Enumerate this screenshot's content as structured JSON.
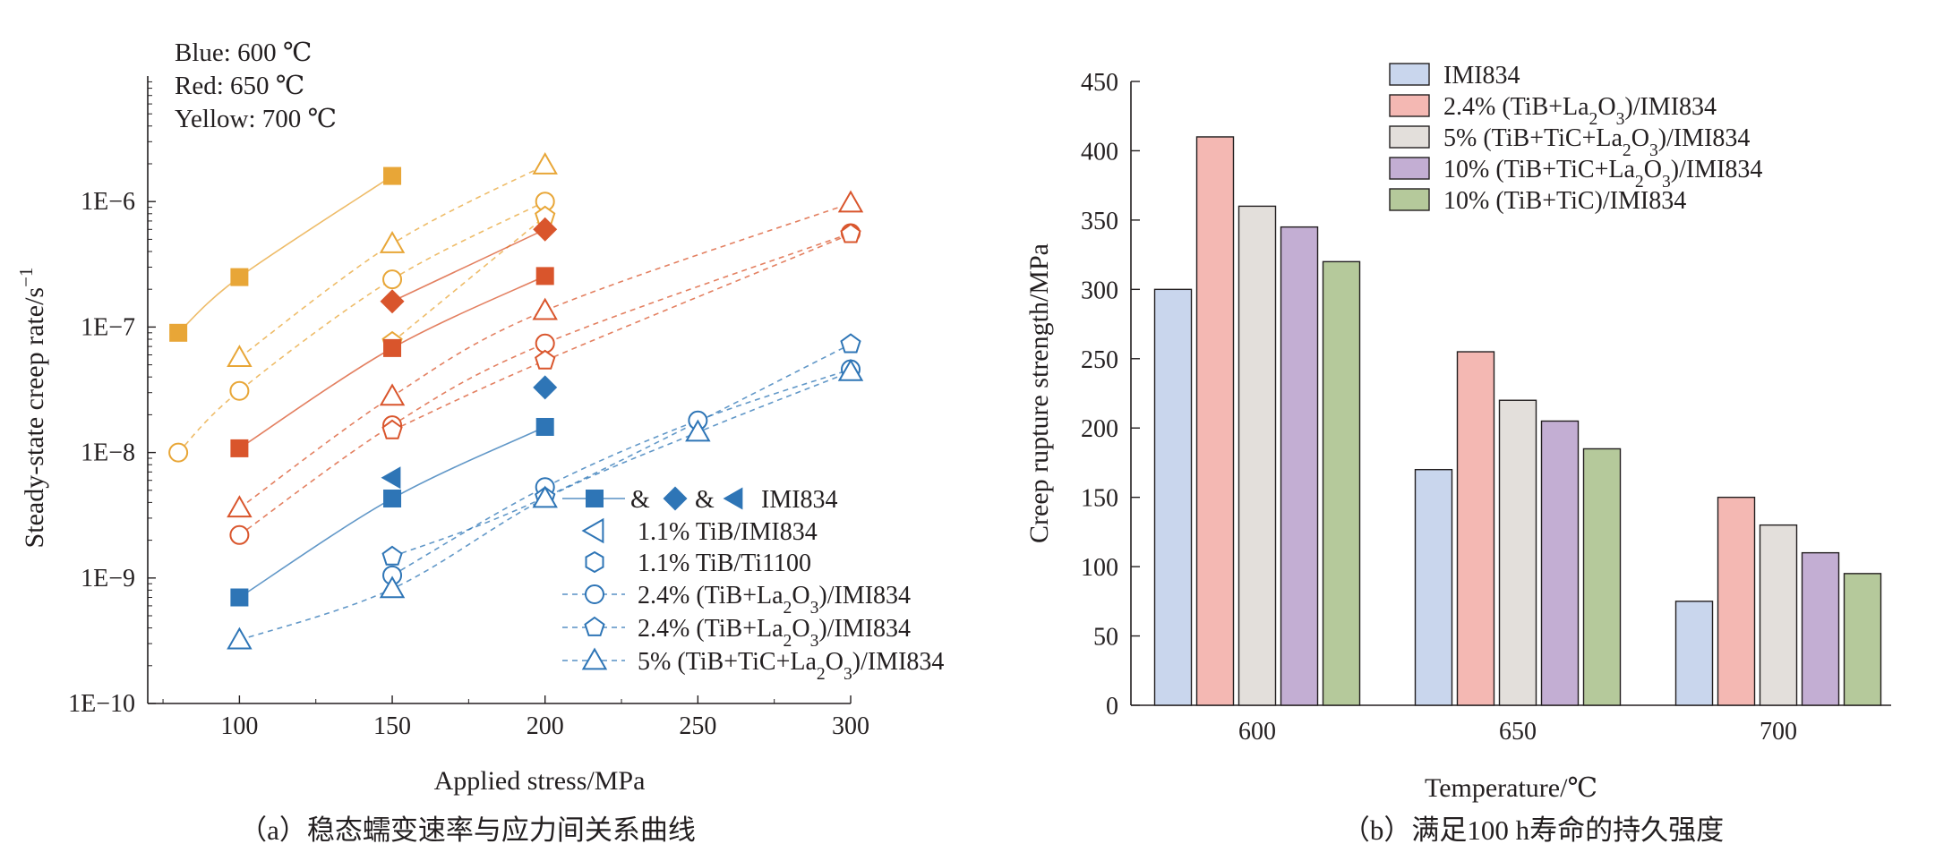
{
  "chart_data": [
    {
      "type": "scatter",
      "yscale": "log",
      "xlabel": "Applied stress/MPa",
      "ylabel": "Steady-state creep rate/s",
      "ylabel_sup": "−1",
      "caption": "（a）稳态蠕变速率与应力间关系曲线",
      "xlim": [
        70,
        300
      ],
      "ylim": [
        1e-10,
        1e-05
      ],
      "xticks": [
        100,
        150,
        200,
        250,
        300
      ],
      "xtick_labels": [
        "100",
        "150",
        "200",
        "250",
        "300"
      ],
      "yticks": [
        1e-10,
        1e-09,
        1e-08,
        1e-07,
        1e-06
      ],
      "ytick_labels": [
        "1E−10",
        "1E−9",
        "1E−8",
        "1E−7",
        "1E−6"
      ],
      "color_notes": [
        "Blue: 600 ℃",
        "Red: 650 ℃",
        "Yellow: 700 ℃"
      ],
      "colors": {
        "blue": "#2e75b6",
        "red": "#d9552c",
        "yellow": "#e8a637"
      },
      "legend": {
        "placement": "bottom-right",
        "entries": [
          {
            "marker": "square+diamond+triangle-left",
            "line": "solid",
            "prefix": [
              "&",
              "&"
            ],
            "label": "IMI834"
          },
          {
            "marker": "triangle-left-open",
            "line": "none",
            "label": "1.1% TiB/IMI834"
          },
          {
            "marker": "hexagon-open",
            "line": "none",
            "label": "1.1% TiB/Ti1100"
          },
          {
            "marker": "circle-open",
            "line": "dashed",
            "label": "2.4% (TiB+La",
            "sub1": "2",
            "mid": "O",
            "sub2": "3",
            "tail": ")/IMI834"
          },
          {
            "marker": "pentagon-open",
            "line": "dashed",
            "label": "2.4% (TiB+La",
            "sub1": "2",
            "mid": "O",
            "sub2": "3",
            "tail": ")/IMI834"
          },
          {
            "marker": "triangle-up-open",
            "line": "dashed",
            "label": "5% (TiB+TiC+La",
            "sub1": "2",
            "mid": "O",
            "sub2": "3",
            "tail": ")/IMI834"
          }
        ]
      },
      "series": [
        {
          "color": "yellow",
          "marker": "square",
          "filled": true,
          "line": "solid",
          "points": [
            [
              80,
              9e-08
            ],
            [
              100,
              2.5e-07
            ],
            [
              150,
              1.6e-06
            ]
          ]
        },
        {
          "color": "yellow",
          "marker": "circle",
          "filled": false,
          "line": "dashed",
          "points": [
            [
              80,
              1e-08
            ],
            [
              100,
              3.1e-08
            ],
            [
              150,
              2.4e-07
            ],
            [
              200,
              1e-06
            ]
          ]
        },
        {
          "color": "yellow",
          "marker": "pentagon",
          "filled": false,
          "line": "dashed",
          "points": [
            [
              150,
              7.6e-08
            ],
            [
              200,
              7.6e-07
            ]
          ]
        },
        {
          "color": "yellow",
          "marker": "triangle-up",
          "filled": false,
          "line": "dashed",
          "points": [
            [
              100,
              5.7e-08
            ],
            [
              150,
              4.6e-07
            ],
            [
              200,
              1.95e-06
            ]
          ]
        },
        {
          "color": "red",
          "marker": "square",
          "filled": true,
          "line": "solid",
          "points": [
            [
              100,
              1.08e-08
            ],
            [
              150,
              6.8e-08
            ],
            [
              200,
              2.55e-07
            ]
          ]
        },
        {
          "color": "red",
          "marker": "diamond",
          "filled": true,
          "line": "solid",
          "points": [
            [
              150,
              1.6e-07
            ],
            [
              200,
              6e-07
            ]
          ]
        },
        {
          "color": "red",
          "marker": "circle",
          "filled": false,
          "line": "dashed",
          "points": [
            [
              100,
              2.2e-09
            ],
            [
              150,
              1.65e-08
            ],
            [
              200,
              7.4e-08
            ],
            [
              300,
              5.6e-07
            ]
          ]
        },
        {
          "color": "red",
          "marker": "pentagon",
          "filled": false,
          "line": "dashed",
          "points": [
            [
              150,
              1.5e-08
            ],
            [
              200,
              5.4e-08
            ],
            [
              300,
              5.5e-07
            ]
          ]
        },
        {
          "color": "red",
          "marker": "triangle-up",
          "filled": false,
          "line": "dashed",
          "points": [
            [
              100,
              3.6e-09
            ],
            [
              150,
              2.8e-08
            ],
            [
              200,
              1.35e-07
            ],
            [
              300,
              9.7e-07
            ]
          ]
        },
        {
          "color": "blue",
          "marker": "square",
          "filled": true,
          "line": "solid",
          "points": [
            [
              100,
              7e-10
            ],
            [
              150,
              4.3e-09
            ],
            [
              200,
              1.6e-08
            ]
          ]
        },
        {
          "color": "blue",
          "marker": "diamond",
          "filled": true,
          "line": "none",
          "points": [
            [
              200,
              3.3e-08
            ]
          ]
        },
        {
          "color": "blue",
          "marker": "triangle-left",
          "filled": true,
          "line": "none",
          "points": [
            [
              150,
              6.3e-09
            ]
          ]
        },
        {
          "color": "blue",
          "marker": "circle",
          "filled": false,
          "line": "dashed",
          "points": [
            [
              150,
              1.05e-09
            ],
            [
              200,
              5.3e-09
            ],
            [
              250,
              1.8e-08
            ],
            [
              300,
              4.6e-08
            ]
          ]
        },
        {
          "color": "blue",
          "marker": "pentagon",
          "filled": false,
          "line": "dashed",
          "points": [
            [
              150,
              1.48e-09
            ],
            [
              200,
              4.4e-09
            ],
            [
              300,
              7.3e-08
            ]
          ]
        },
        {
          "color": "blue",
          "marker": "triangle-up",
          "filled": false,
          "line": "dashed",
          "points": [
            [
              100,
              3.2e-10
            ],
            [
              150,
              8.2e-10
            ],
            [
              200,
              4.3e-09
            ],
            [
              250,
              1.45e-08
            ],
            [
              300,
              4.4e-08
            ]
          ]
        }
      ]
    },
    {
      "type": "bar",
      "xlabel": "Temperature/℃",
      "ylabel": "Creep rupture strength/MPa",
      "caption": "（b）满足100 h寿命的持久强度",
      "categories": [
        "600",
        "650",
        "700"
      ],
      "ylim": [
        0,
        450
      ],
      "yticks": [
        0,
        50,
        100,
        150,
        200,
        250,
        300,
        350,
        400,
        450
      ],
      "legend_placement": "top",
      "series": [
        {
          "name": "IMI834",
          "color": "#c9d6ed",
          "values": [
            300,
            170,
            75
          ]
        },
        {
          "name": "2.4% (TiB+La",
          "name_sub1": "2",
          "name_mid": "O",
          "name_sub2": "3",
          "name_tail": ")/IMI834",
          "color": "#f4b8b3",
          "values": [
            410,
            255,
            150
          ]
        },
        {
          "name": "5% (TiB+TiC+La",
          "name_sub1": "2",
          "name_mid": "O",
          "name_sub2": "3",
          "name_tail": ")/IMI834",
          "color": "#e3dfdb",
          "values": [
            360,
            220,
            130
          ]
        },
        {
          "name": "10% (TiB+TiC+La",
          "name_sub1": "2",
          "name_mid": "O",
          "name_sub2": "3",
          "name_tail": ")/IMI834",
          "color": "#c3aed3",
          "values": [
            345,
            205,
            110
          ]
        },
        {
          "name": "10% (TiB+TiC)/IMI834",
          "color": "#b5c99b",
          "values": [
            320,
            185,
            95
          ]
        }
      ]
    }
  ]
}
